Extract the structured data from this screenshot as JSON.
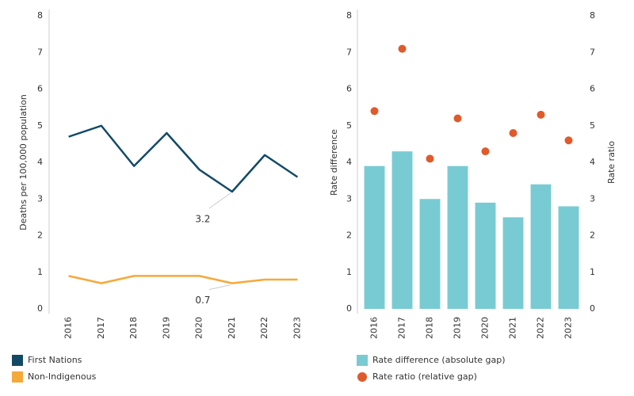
{
  "chart_data": [
    {
      "type": "line",
      "y_label": "Deaths per 100,000 population",
      "categories": [
        "2016",
        "2017",
        "2018",
        "2019",
        "2020",
        "2021",
        "2022",
        "2023"
      ],
      "series": [
        {
          "name": "First Nations",
          "color": "#124a66",
          "values": [
            4.7,
            5.0,
            3.9,
            4.8,
            3.8,
            3.2,
            4.2,
            3.6
          ]
        },
        {
          "name": "Non-Indigenous",
          "color": "#f5a93a",
          "values": [
            0.9,
            0.7,
            0.9,
            0.9,
            0.9,
            0.7,
            0.8,
            0.8
          ]
        }
      ],
      "annotations": [
        {
          "text": "3.2",
          "x": "2021",
          "series": "First Nations"
        },
        {
          "text": "0.7",
          "x": "2021",
          "series": "Non-Indigenous"
        }
      ],
      "ylim": [
        0,
        8
      ],
      "yticks": [
        0,
        1,
        2,
        3,
        4,
        5,
        6,
        7,
        8
      ]
    },
    {
      "type": "bar",
      "y_label": "Rate difference",
      "y2_label": "Rate ratio",
      "categories": [
        "2016",
        "2017",
        "2018",
        "2019",
        "2020",
        "2021",
        "2022",
        "2023"
      ],
      "series": [
        {
          "name": "Rate difference (absolute gap)",
          "type": "bar",
          "color": "#79cbd3",
          "values": [
            3.9,
            4.3,
            3.0,
            3.9,
            2.9,
            2.5,
            3.4,
            2.8
          ]
        },
        {
          "name": "Rate ratio (relative gap)",
          "type": "scatter",
          "axis": "y2",
          "color": "#e05a2b",
          "values": [
            5.4,
            7.1,
            4.1,
            5.2,
            4.3,
            4.8,
            5.3,
            4.6
          ]
        }
      ],
      "ylim": [
        0,
        8
      ],
      "yticks": [
        0,
        1,
        2,
        3,
        4,
        5,
        6,
        7,
        8
      ],
      "y2lim": [
        0,
        8
      ],
      "y2ticks": [
        0,
        1,
        2,
        3,
        4,
        5,
        6,
        7,
        8
      ]
    }
  ]
}
